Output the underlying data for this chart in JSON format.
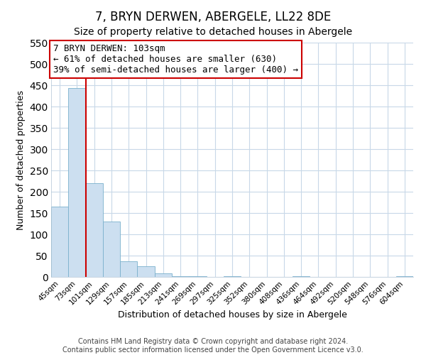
{
  "title": "7, BRYN DERWEN, ABERGELE, LL22 8DE",
  "subtitle": "Size of property relative to detached houses in Abergele",
  "xlabel": "Distribution of detached houses by size in Abergele",
  "ylabel": "Number of detached properties",
  "bar_labels": [
    "45sqm",
    "73sqm",
    "101sqm",
    "129sqm",
    "157sqm",
    "185sqm",
    "213sqm",
    "241sqm",
    "269sqm",
    "297sqm",
    "325sqm",
    "352sqm",
    "380sqm",
    "408sqm",
    "436sqm",
    "464sqm",
    "492sqm",
    "520sqm",
    "548sqm",
    "576sqm",
    "604sqm"
  ],
  "bar_values": [
    165,
    443,
    220,
    130,
    37,
    25,
    8,
    2,
    2,
    0,
    2,
    0,
    0,
    0,
    2,
    0,
    0,
    0,
    0,
    0,
    2
  ],
  "bar_color": "#ccdff0",
  "bar_edge_color": "#7ab0cc",
  "vline_color": "#cc0000",
  "ylim": [
    0,
    550
  ],
  "yticks": [
    0,
    50,
    100,
    150,
    200,
    250,
    300,
    350,
    400,
    450,
    500,
    550
  ],
  "annotation_title": "7 BRYN DERWEN: 103sqm",
  "annotation_line1": "← 61% of detached houses are smaller (630)",
  "annotation_line2": "39% of semi-detached houses are larger (400) →",
  "annotation_box_color": "#ffffff",
  "annotation_box_edge": "#cc0000",
  "footer1": "Contains HM Land Registry data © Crown copyright and database right 2024.",
  "footer2": "Contains public sector information licensed under the Open Government Licence v3.0.",
  "title_fontsize": 12,
  "subtitle_fontsize": 10,
  "axis_label_fontsize": 9,
  "tick_fontsize": 7.5,
  "annotation_fontsize": 9,
  "footer_fontsize": 7,
  "grid_color": "#c8d8e8",
  "background_color": "#ffffff"
}
